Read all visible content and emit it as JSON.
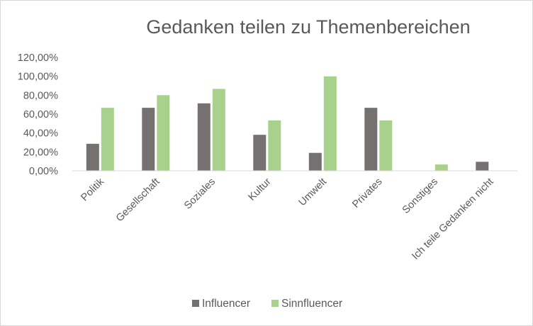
{
  "chart_data": {
    "type": "bar",
    "title": "Gedanken teilen zu Themenbereichen",
    "categories": [
      "Politik",
      "Gesellschaft",
      "Soziales",
      "Kultur",
      "Umwelt",
      "Privates",
      "Sonstiges",
      "Ich teile Gedanken nicht"
    ],
    "series": [
      {
        "name": "Influencer",
        "color": "#767171",
        "values": [
          0.286,
          0.667,
          0.714,
          0.381,
          0.19,
          0.667,
          0,
          0.095
        ]
      },
      {
        "name": "Sinnfluencer",
        "color": "#a9d18e",
        "values": [
          0.667,
          0.8,
          0.867,
          0.533,
          1.0,
          0.533,
          0.067,
          0
        ]
      }
    ],
    "ylim": [
      0,
      1.2
    ],
    "yticks": [
      "0,00%",
      "20,00%",
      "40,00%",
      "60,00%",
      "80,00%",
      "100,00%",
      "120,00%"
    ],
    "grid": false,
    "legend_position": "bottom"
  }
}
